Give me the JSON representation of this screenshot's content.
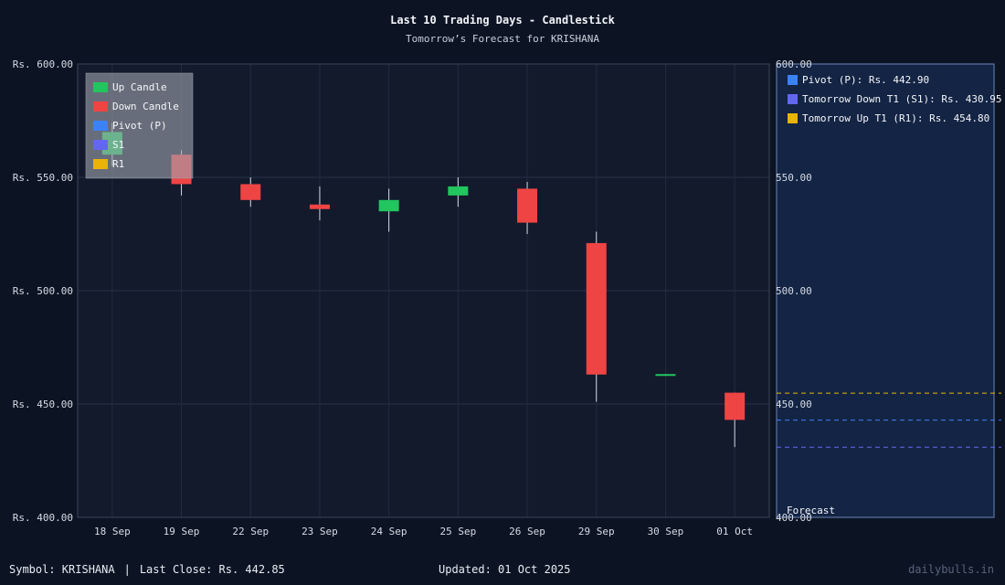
{
  "header": {
    "title": "Last 10 Trading Days - Candlestick",
    "subtitle": "Tomorrow’s Forecast for KRISHANA"
  },
  "chart_data": {
    "type": "candlestick",
    "currency_prefix": "Rs. ",
    "ylim": [
      400,
      600
    ],
    "yticks": [
      400,
      450,
      500,
      550,
      600
    ],
    "categories": [
      "18 Sep",
      "19 Sep",
      "22 Sep",
      "23 Sep",
      "24 Sep",
      "25 Sep",
      "26 Sep",
      "29 Sep",
      "30 Sep",
      "01 Oct"
    ],
    "candles": [
      {
        "date": "18 Sep",
        "open": 560,
        "high": 574,
        "low": 555,
        "close": 570
      },
      {
        "date": "19 Sep",
        "open": 560,
        "high": 562,
        "low": 542,
        "close": 547
      },
      {
        "date": "22 Sep",
        "open": 547,
        "high": 550,
        "low": 537,
        "close": 540
      },
      {
        "date": "23 Sep",
        "open": 538,
        "high": 546,
        "low": 531,
        "close": 536
      },
      {
        "date": "24 Sep",
        "open": 535,
        "high": 545,
        "low": 526,
        "close": 540
      },
      {
        "date": "25 Sep",
        "open": 542,
        "high": 550,
        "low": 537,
        "close": 546
      },
      {
        "date": "26 Sep",
        "open": 545,
        "high": 548,
        "low": 525,
        "close": 530
      },
      {
        "date": "29 Sep",
        "open": 521,
        "high": 526,
        "low": 451,
        "close": 463
      },
      {
        "date": "30 Sep",
        "open": 462.8,
        "high": 463.2,
        "low": 462.8,
        "close": 463.2
      },
      {
        "date": "01 Oct",
        "open": 455,
        "high": 455,
        "low": 431,
        "close": 443
      }
    ],
    "legend": {
      "placement": "top-left",
      "items": [
        {
          "label": "Up Candle",
          "color": "#22c55e"
        },
        {
          "label": "Down Candle",
          "color": "#ef4444"
        },
        {
          "label": "Pivot (P)",
          "color": "#3b82f6"
        },
        {
          "label": "S1",
          "color": "#6366f1"
        },
        {
          "label": "R1",
          "color": "#eab308"
        }
      ]
    },
    "forecast": {
      "label": "Forecast",
      "ylim": [
        400,
        600
      ],
      "yticks": [
        400,
        450,
        500,
        550,
        600
      ],
      "levels": [
        {
          "label": "Pivot (P): Rs. 442.90",
          "value": 442.9,
          "color": "#3b82f6"
        },
        {
          "label": "Tomorrow Down T1 (S1): Rs. 430.95",
          "value": 430.95,
          "color": "#6366f1"
        },
        {
          "label": "Tomorrow Up T1 (R1): Rs. 454.80",
          "value": 454.8,
          "color": "#eab308"
        }
      ]
    },
    "colors": {
      "up": "#22c55e",
      "down": "#ef4444"
    }
  },
  "footer": {
    "symbol": "Symbol: KRISHANA",
    "separator": "|",
    "last_close": "Last Close: Rs. 442.85",
    "updated": "Updated: 01 Oct 2025",
    "watermark": "dailybulls.in"
  }
}
